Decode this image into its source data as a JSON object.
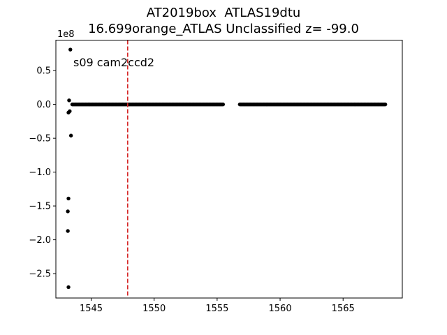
{
  "chart_data": {
    "type": "scatter",
    "title": [
      "AT2019box  ATLAS19dtu",
      "16.699orange_ATLAS Unclassified z= -99.0"
    ],
    "xlabel": "",
    "ylabel": "",
    "y_scale_label": "1e8",
    "annotation": "s09 cam2ccd2",
    "xlim": [
      1542.2,
      1569.7
    ],
    "ylim": [
      -2.86,
      0.95
    ],
    "xticks": [
      1545,
      1550,
      1555,
      1560,
      1565
    ],
    "xtick_labels": [
      "1545",
      "1550",
      "1555",
      "1560",
      "1565"
    ],
    "yticks": [
      0.5,
      0.0,
      -0.5,
      -1.0,
      -1.5,
      -2.0,
      -2.5
    ],
    "ytick_labels": [
      "0.5",
      "0.0",
      "−0.5",
      "−1.0",
      "−1.5",
      "−2.0",
      "−2.5"
    ],
    "vline": {
      "x": 1547.9,
      "color": "#d62728",
      "style": "dashed"
    },
    "marker_color": "#000000",
    "outliers": [
      {
        "x": 1543.35,
        "y": 0.81
      },
      {
        "x": 1543.25,
        "y": 0.06
      },
      {
        "x": 1543.3,
        "y": -0.1
      },
      {
        "x": 1543.2,
        "y": -0.12
      },
      {
        "x": 1543.4,
        "y": -0.46
      },
      {
        "x": 1543.2,
        "y": -1.39
      },
      {
        "x": 1543.15,
        "y": -1.58
      },
      {
        "x": 1543.15,
        "y": -1.87
      },
      {
        "x": 1543.2,
        "y": -2.7
      }
    ],
    "segments": [
      {
        "x_start": 1543.5,
        "x_end": 1555.5,
        "y": 0.0
      },
      {
        "x_start": 1556.8,
        "x_end": 1568.4,
        "y": 0.0
      }
    ]
  }
}
